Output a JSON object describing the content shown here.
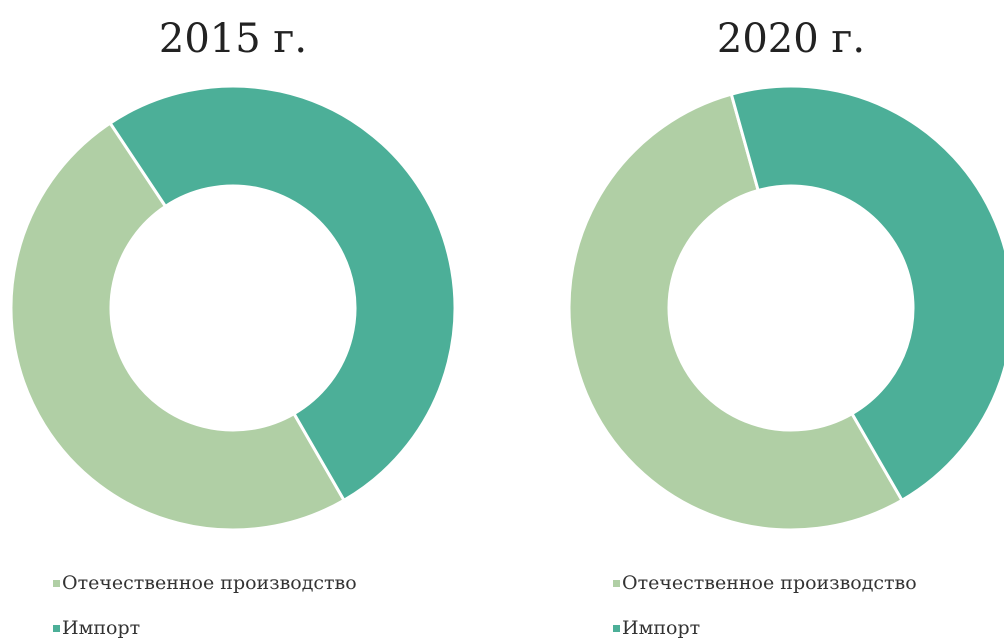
{
  "chart_data": [
    {
      "type": "donut",
      "title": "2015 г.",
      "series": [
        {
          "name": "Отечественное производство",
          "color": "#b0cfa5",
          "value": 49
        },
        {
          "name": "Импорт",
          "color": "#4caf98",
          "value": 51
        }
      ]
    },
    {
      "type": "donut",
      "title": "2020 г.",
      "series": [
        {
          "name": "Отечественное производство",
          "color": "#b0cfa5",
          "value": 54
        },
        {
          "name": "Импорт",
          "color": "#4caf98",
          "value": 46
        }
      ]
    }
  ]
}
